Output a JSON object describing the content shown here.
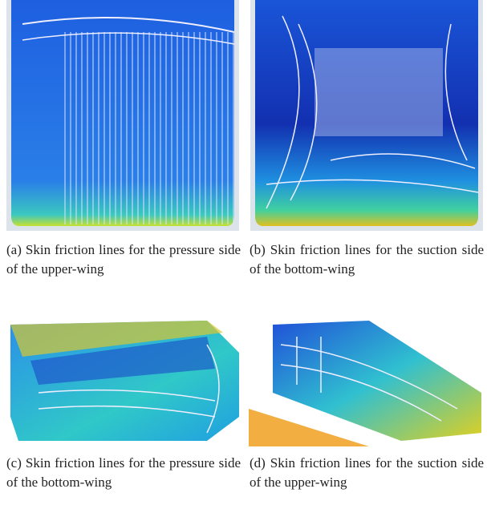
{
  "panels": [
    {
      "caption": "(a) Skin friction lines for the pressure side of the upper-wing"
    },
    {
      "caption": "(b) Skin friction lines for the suction side of the bottom-wing"
    },
    {
      "caption": "(c) Skin friction lines for the pressure side of the bottom-wing"
    },
    {
      "caption": "(d) Skin friction lines for the suction side of the upper-wing"
    }
  ]
}
